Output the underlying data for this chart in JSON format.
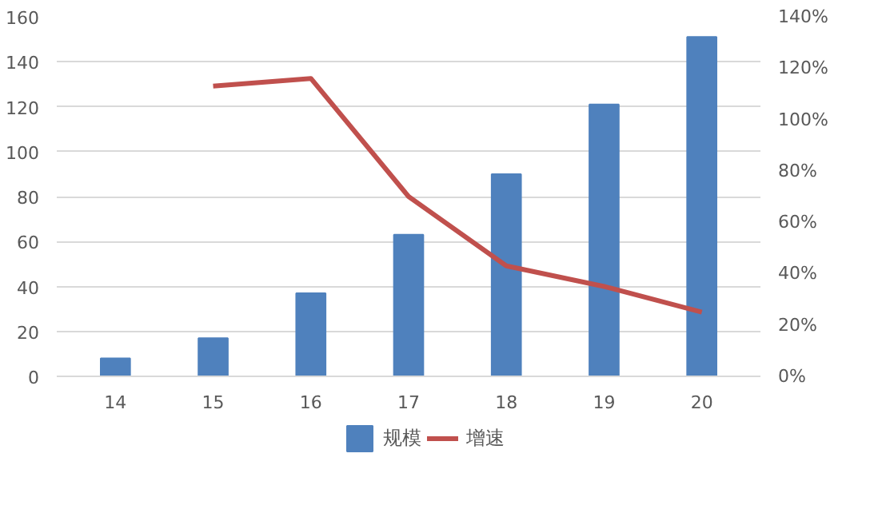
{
  "chart_data": {
    "type": "bar",
    "categories": [
      "14",
      "15",
      "16",
      "17",
      "18",
      "19",
      "20"
    ],
    "series": [
      {
        "name": "规模",
        "color": "#4f81bd",
        "values": [
          8,
          17,
          37,
          63,
          90,
          121,
          151
        ]
      },
      {
        "name": "增速",
        "type": "line",
        "axis": "y2",
        "color": "#c0504d",
        "values": [
          null,
          113,
          116,
          70,
          43,
          35,
          25
        ]
      }
    ],
    "ylim": [
      0,
      160
    ],
    "yticks": [
      0,
      20,
      40,
      60,
      80,
      100,
      120,
      140,
      160
    ],
    "y2lim": [
      0,
      140
    ],
    "y2ticks": [
      {
        "value": 0,
        "label": "0%"
      },
      {
        "value": 20,
        "label": "20%"
      },
      {
        "value": 40,
        "label": "40%"
      },
      {
        "value": 60,
        "label": "60%"
      },
      {
        "value": 80,
        "label": "80%"
      },
      {
        "value": 100,
        "label": "100%"
      },
      {
        "value": 120,
        "label": "120%"
      },
      {
        "value": 140,
        "label": "140%"
      }
    ],
    "grid": "y",
    "legend": "bottom"
  }
}
